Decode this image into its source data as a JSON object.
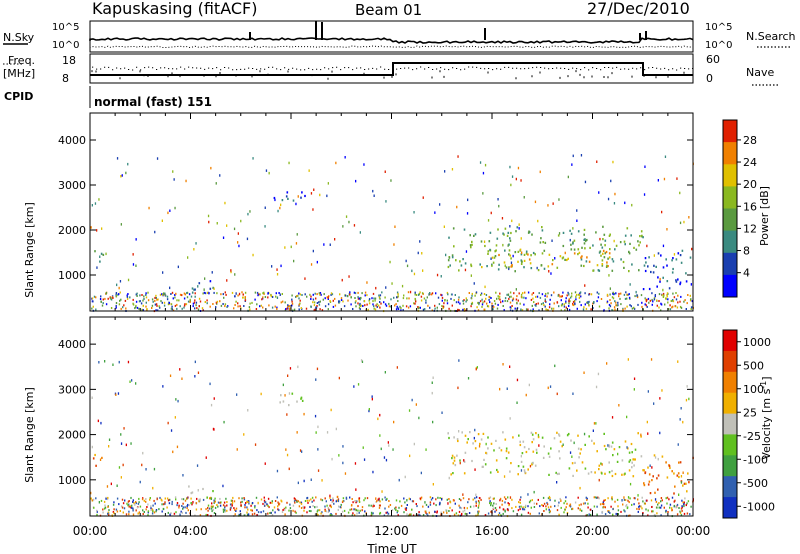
{
  "header": {
    "station": "Kapuskasing (fitACF)",
    "beam": "Beam 01",
    "date": "27/Dec/2010"
  },
  "top_panels": {
    "nsky_label": "N.Sky",
    "nsearch_label": "N.Search",
    "noise_ticks": [
      "10^5",
      "10^0"
    ],
    "freq_label": "Freq.",
    "freq_unit": "[MHz]",
    "freq_ticks": [
      "18",
      "8"
    ],
    "nave_label": "Nave",
    "nave_ticks": [
      "60",
      "0"
    ],
    "cpid_label": "CPID",
    "cpid_text": "normal (fast) 151"
  },
  "colors": {
    "power": [
      "#0000ff",
      "#1a3fb0",
      "#3a8a80",
      "#5a9a40",
      "#8ab820",
      "#e0c000",
      "#f08000",
      "#e02000"
    ],
    "velocity": [
      "#1030c0",
      "#3060b0",
      "#40a040",
      "#60c020",
      "#c0c0b8",
      "#f0b000",
      "#f08000",
      "#e04000",
      "#e00000"
    ]
  },
  "chart_data": [
    {
      "type": "heatmap",
      "name": "power",
      "xlabel": "Time UT",
      "ylabel": "Slant Range [km]",
      "xlim": [
        0,
        24
      ],
      "ylim": [
        200,
        4600
      ],
      "x_ticks": [
        "00:00",
        "04:00",
        "08:00",
        "12:00",
        "16:00",
        "20:00",
        "00:00"
      ],
      "y_ticks": [
        1000,
        2000,
        3000,
        4000
      ],
      "colorbar": {
        "label": "Power [dB]",
        "ticks": [
          "28",
          "24",
          "20",
          "16",
          "12",
          "8",
          "4"
        ],
        "range": [
          0,
          30
        ]
      },
      "features": [
        {
          "t": [
            0.1,
            0.5
          ],
          "range": [
            1200,
            1600
          ],
          "level": 2
        },
        {
          "t": [
            3.8,
            4.9
          ],
          "range": [
            550,
            950
          ],
          "level": 1
        },
        {
          "t": [
            7.3,
            8.6
          ],
          "range": [
            2650,
            2950
          ],
          "level": 1
        },
        {
          "t": [
            9.5,
            10.8
          ],
          "range": [
            480,
            650
          ],
          "level": 3
        },
        {
          "t": [
            14.2,
            22.0
          ],
          "range": [
            1100,
            2100
          ],
          "level": 3
        },
        {
          "t": [
            15.5,
            21.0
          ],
          "range": [
            1200,
            1600
          ],
          "level": 5
        },
        {
          "t": [
            22.0,
            24.0
          ],
          "range": [
            700,
            1600
          ],
          "level": 1
        }
      ]
    },
    {
      "type": "heatmap",
      "name": "velocity",
      "xlabel": "Time UT",
      "ylabel": "Slant Range [km]",
      "xlim": [
        0,
        24
      ],
      "ylim": [
        200,
        4600
      ],
      "x_ticks": [
        "00:00",
        "04:00",
        "08:00",
        "12:00",
        "16:00",
        "20:00",
        "00:00"
      ],
      "y_ticks": [
        1000,
        2000,
        3000,
        4000
      ],
      "colorbar": {
        "label": "Velocity [m s",
        "label_sup": "-1",
        "label_end": "]",
        "ticks": [
          "1000",
          "500",
          "100",
          "25",
          "-25",
          "-100",
          "-500",
          "-1000"
        ]
      },
      "features": [
        {
          "t": [
            0.1,
            0.5
          ],
          "range": [
            1200,
            1600
          ],
          "level": 6
        },
        {
          "t": [
            3.8,
            4.9
          ],
          "range": [
            550,
            950
          ],
          "level": 4
        },
        {
          "t": [
            7.3,
            8.6
          ],
          "range": [
            2650,
            2950
          ],
          "level": 4
        },
        {
          "t": [
            9.5,
            10.8
          ],
          "range": [
            480,
            650
          ],
          "level": 5
        },
        {
          "t": [
            14.2,
            22.0
          ],
          "range": [
            1100,
            2100
          ],
          "level": 4
        },
        {
          "t": [
            22.0,
            24.0
          ],
          "range": [
            700,
            1600
          ],
          "level": 6
        }
      ]
    }
  ]
}
